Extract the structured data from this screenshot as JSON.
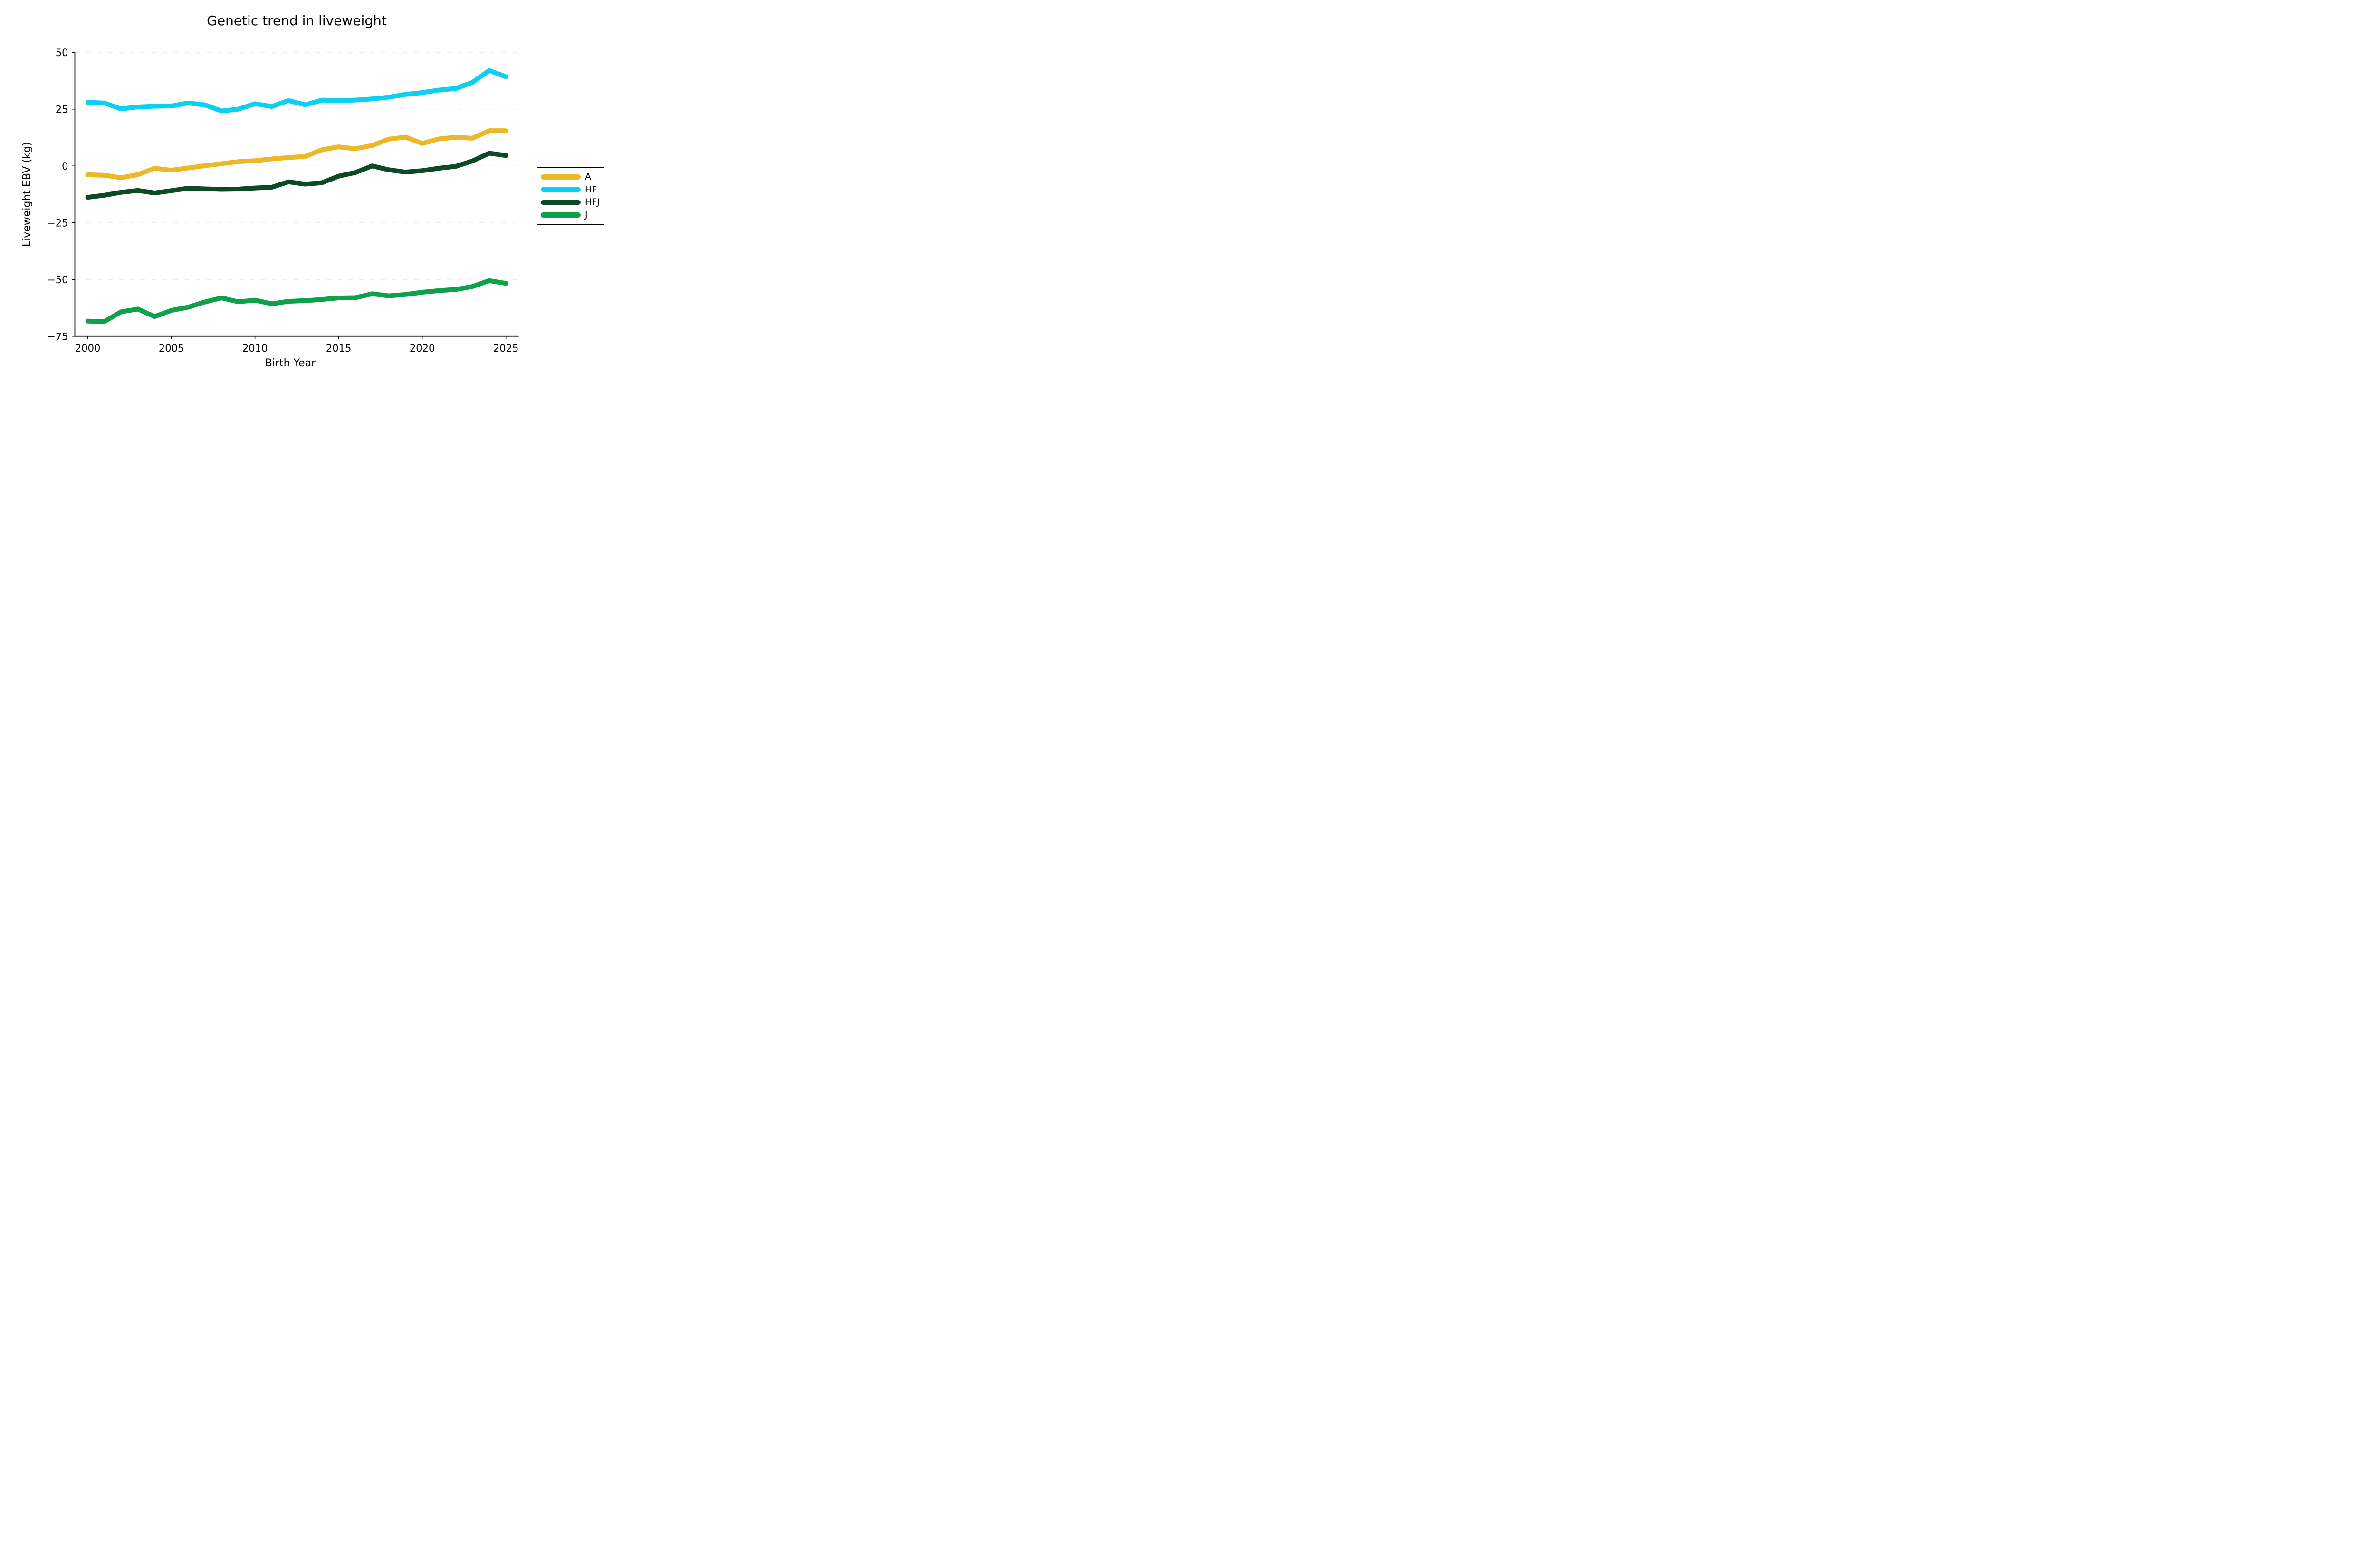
{
  "figure": {
    "background": "#ffffff",
    "text_color": "#000000"
  },
  "chart_data": {
    "type": "line",
    "title": "Genetic trend in liveweight",
    "xlabel": "Birth Year",
    "ylabel": "Liveweight EBV (kg)",
    "xlim": [
      1999.23,
      2025.77
    ],
    "ylim": [
      -75,
      50
    ],
    "xticks": [
      2000,
      2005,
      2010,
      2015,
      2020,
      2025
    ],
    "yticks": [
      50,
      25,
      0,
      -25,
      -50,
      -75
    ],
    "grid": "horizontal-dashed",
    "grid_color": "#e9e9e9",
    "axis_color": "#000000",
    "legend_position": "center-right",
    "x": [
      2000,
      2001,
      2002,
      2003,
      2004,
      2005,
      2006,
      2007,
      2008,
      2009,
      2010,
      2011,
      2012,
      2013,
      2014,
      2015,
      2016,
      2017,
      2018,
      2019,
      2020,
      2021,
      2022,
      2023,
      2024,
      2025
    ],
    "series": [
      {
        "name": "A",
        "color": "#EBB928",
        "values": [
          -3.9,
          -4.1,
          -5.2,
          -3.8,
          -1.0,
          -1.9,
          -0.9,
          0.1,
          1.0,
          1.9,
          2.3,
          3.1,
          3.7,
          4.2,
          7.1,
          8.4,
          7.6,
          9.0,
          11.8,
          12.7,
          9.9,
          11.9,
          12.6,
          12.2,
          15.5,
          15.5
        ]
      },
      {
        "name": "HF",
        "color": "#0BD0F2",
        "values": [
          28.0,
          27.7,
          25.1,
          26.0,
          26.3,
          26.4,
          27.7,
          26.9,
          24.2,
          25.0,
          27.4,
          26.2,
          28.8,
          26.9,
          29.0,
          28.8,
          29.0,
          29.5,
          30.3,
          31.5,
          32.3,
          33.4,
          34.1,
          36.8,
          42.0,
          39.3
        ]
      },
      {
        "name": "HFJ",
        "color": "#0C4A26",
        "values": [
          -13.8,
          -12.9,
          -11.6,
          -10.8,
          -11.9,
          -10.9,
          -9.8,
          -10.1,
          -10.3,
          -10.2,
          -9.7,
          -9.4,
          -7.0,
          -8.0,
          -7.4,
          -4.5,
          -2.9,
          0.0,
          -1.7,
          -2.7,
          -2.1,
          -1.0,
          -0.2,
          2.2,
          5.6,
          4.6
        ]
      },
      {
        "name": "J",
        "color": "#0FA04C",
        "values": [
          -68.3,
          -68.5,
          -64.2,
          -63.0,
          -66.3,
          -63.6,
          -62.2,
          -59.9,
          -58.1,
          -59.8,
          -59.1,
          -60.7,
          -59.6,
          -59.3,
          -58.8,
          -58.1,
          -58.0,
          -56.3,
          -57.2,
          -56.6,
          -55.6,
          -54.9,
          -54.4,
          -53.1,
          -50.5,
          -51.7
        ]
      }
    ]
  }
}
